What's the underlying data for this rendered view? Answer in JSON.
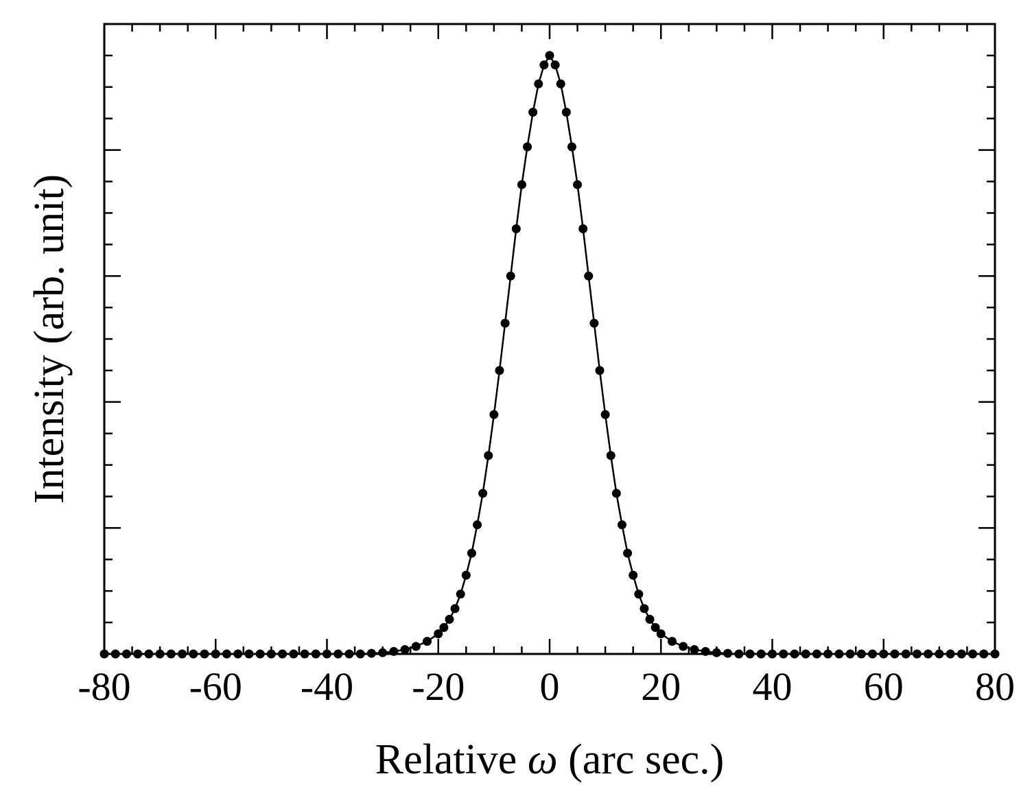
{
  "chart_data": {
    "type": "scatter",
    "title": "",
    "xlabel_prefix": "Relative ",
    "xlabel_symbol": "ω",
    "xlabel_suffix": " (arc sec.)",
    "ylabel": "Intensity (arb. unit)",
    "xlim": [
      -80,
      80
    ],
    "ylim": [
      0,
      1.0
    ],
    "x_ticks": [
      -80,
      -60,
      -40,
      -20,
      0,
      20,
      40,
      60,
      80
    ],
    "x_tick_labels": [
      "-80",
      "-60",
      "-40",
      "-20",
      "0",
      "20",
      "40",
      "60",
      "80"
    ],
    "y_tick_labels_shown": false,
    "grid": false,
    "legend": "none",
    "marker_color": "#000000",
    "line_color": "#000000",
    "series": [
      {
        "style": "markers+line",
        "x": [
          -80,
          -78,
          -76,
          -74,
          -72,
          -70,
          -68,
          -66,
          -64,
          -62,
          -60,
          -58,
          -56,
          -54,
          -52,
          -50,
          -48,
          -46,
          -44,
          -42,
          -40,
          -38,
          -36,
          -34,
          -32,
          -30,
          -28,
          -26,
          -24,
          -22,
          -20,
          -19,
          -18,
          -17,
          -16,
          -15,
          -14,
          -13,
          -12,
          -11,
          -10,
          -9,
          -8,
          -7,
          -6,
          -5,
          -4,
          -3,
          -2,
          -1,
          0,
          1,
          2,
          3,
          4,
          5,
          6,
          7,
          8,
          9,
          10,
          11,
          12,
          13,
          14,
          15,
          16,
          17,
          18,
          19,
          20,
          22,
          24,
          26,
          28,
          30,
          32,
          34,
          36,
          38,
          40,
          42,
          44,
          46,
          48,
          50,
          52,
          54,
          56,
          58,
          60,
          62,
          64,
          66,
          68,
          70,
          72,
          74,
          76,
          78,
          80
        ],
        "y": [
          0.0,
          0.0,
          0.0,
          0.0,
          0.0,
          0.0,
          0.0,
          0.0,
          0.0,
          0.0,
          0.0,
          0.0,
          0.0,
          0.0,
          0.0,
          0.0,
          0.0,
          0.0,
          0.0,
          0.0,
          0.0,
          0.0,
          0.0,
          0.0,
          0.001,
          0.002,
          0.004,
          0.007,
          0.012,
          0.02,
          0.032,
          0.042,
          0.055,
          0.072,
          0.095,
          0.125,
          0.16,
          0.205,
          0.255,
          0.315,
          0.38,
          0.45,
          0.525,
          0.6,
          0.675,
          0.745,
          0.805,
          0.86,
          0.905,
          0.935,
          0.95,
          0.935,
          0.905,
          0.86,
          0.805,
          0.745,
          0.675,
          0.6,
          0.525,
          0.45,
          0.38,
          0.315,
          0.255,
          0.205,
          0.16,
          0.125,
          0.095,
          0.072,
          0.055,
          0.042,
          0.032,
          0.02,
          0.012,
          0.007,
          0.004,
          0.002,
          0.001,
          0.0,
          0.0,
          0.0,
          0.0,
          0.0,
          0.0,
          0.0,
          0.0,
          0.0,
          0.0,
          0.0,
          0.0,
          0.0,
          0.0,
          0.0,
          0.0,
          0.0,
          0.0,
          0.0,
          0.0,
          0.0,
          0.0,
          0.0,
          0.0
        ]
      }
    ]
  }
}
